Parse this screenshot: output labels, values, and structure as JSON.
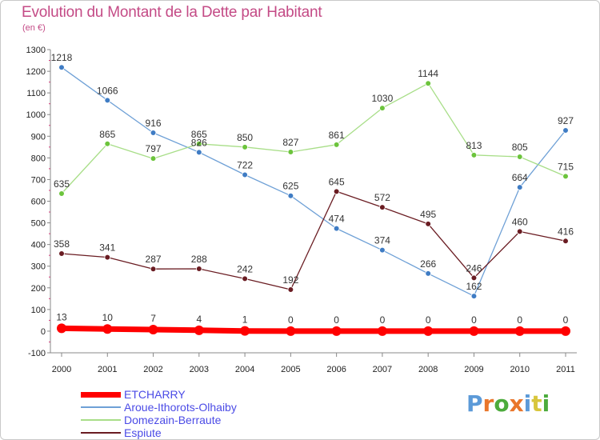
{
  "title": "Evolution du Montant de la Dette par Habitant",
  "subtitle": "(en €)",
  "logo": {
    "text": "Proxiti",
    "colors": [
      "#5c9ad8",
      "#e9762b",
      "#4cab3c",
      "#e9762b",
      "#5c9ad8",
      "#d8c63c",
      "#4cab3c"
    ]
  },
  "chart_data": {
    "type": "line",
    "x": [
      "2000",
      "2001",
      "2002",
      "2003",
      "2004",
      "2005",
      "2006",
      "2007",
      "2008",
      "2009",
      "2010",
      "2011"
    ],
    "ylim": [
      -100,
      1300
    ],
    "yticks": [
      -100,
      0,
      100,
      200,
      300,
      400,
      500,
      600,
      700,
      800,
      900,
      1000,
      1100,
      1200,
      1300
    ],
    "grid": false,
    "legend_position": "bottom-left",
    "series": [
      {
        "name": "ETCHARRY",
        "color": "#ff0000",
        "width": 7,
        "marker": "#ff0000",
        "values": [
          13,
          10,
          7,
          4,
          1,
          0,
          0,
          0,
          0,
          0,
          0,
          0
        ],
        "labels": [
          "13",
          "10",
          "7",
          "4",
          "1",
          "0",
          "0",
          "0",
          "0",
          "0",
          "0",
          "0"
        ]
      },
      {
        "name": "Aroue-Ithorots-Olhaiby",
        "color": "#6ea0d6",
        "width": 1.3,
        "marker": "#3f7cc4",
        "values": [
          1218,
          1066,
          916,
          826,
          722,
          625,
          474,
          374,
          266,
          162,
          664,
          927
        ],
        "labels": [
          "1218",
          "1066",
          "916",
          "826",
          "722",
          "625",
          "474",
          "374",
          "266",
          "162",
          "664",
          "927"
        ]
      },
      {
        "name": "Domezain-Berraute",
        "color": "#a8de88",
        "width": 1.3,
        "marker": "#6cc43c",
        "values": [
          635,
          865,
          797,
          865,
          850,
          827,
          861,
          1030,
          1144,
          813,
          805,
          715
        ],
        "labels": [
          "635",
          "865",
          "797",
          "865",
          "850",
          "827",
          "861",
          "1030",
          "1144",
          "813",
          "805",
          "715"
        ]
      },
      {
        "name": "Espiute",
        "color": "#6a1c22",
        "width": 1.3,
        "marker": "#6a1c22",
        "values": [
          358,
          341,
          287,
          288,
          242,
          192,
          645,
          572,
          495,
          246,
          460,
          416
        ],
        "labels": [
          "358",
          "341",
          "287",
          "288",
          "242",
          "192",
          "645",
          "572",
          "495",
          "246",
          "460",
          "416"
        ]
      }
    ]
  }
}
